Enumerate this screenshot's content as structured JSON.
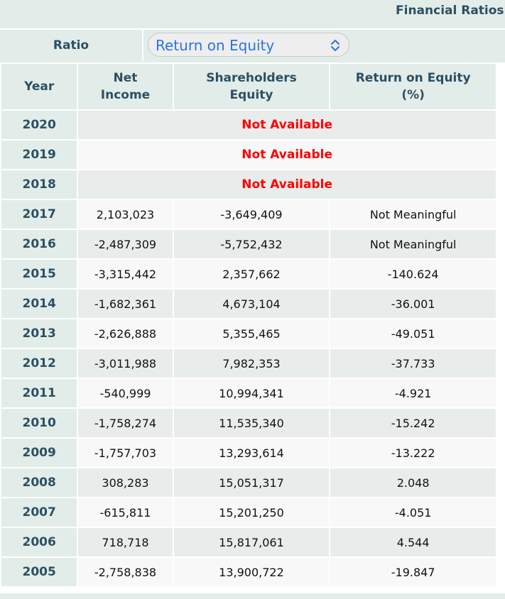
{
  "header": {
    "title": "Financial Ratios"
  },
  "ratio_selector": {
    "label": "Ratio",
    "selected": "Return on Equity",
    "chevron_icon": "chevron-updown-icon",
    "accent_color": "#2a74e0"
  },
  "table": {
    "columns": [
      "Year",
      "Net\nIncome",
      "Shareholders\nEquity",
      "Return on Equity\n(%)"
    ],
    "not_available_text": "Not Available",
    "na_rows": [
      {
        "year": "2020"
      },
      {
        "year": "2019"
      },
      {
        "year": "2018"
      }
    ],
    "rows": [
      {
        "year": "2017",
        "net_income": "2,103,023",
        "equity": "-3,649,409",
        "roe": "Not Meaningful"
      },
      {
        "year": "2016",
        "net_income": "-2,487,309",
        "equity": "-5,752,432",
        "roe": "Not Meaningful"
      },
      {
        "year": "2015",
        "net_income": "-3,315,442",
        "equity": "2,357,662",
        "roe": "-140.624"
      },
      {
        "year": "2014",
        "net_income": "-1,682,361",
        "equity": "4,673,104",
        "roe": "-36.001"
      },
      {
        "year": "2013",
        "net_income": "-2,626,888",
        "equity": "5,355,465",
        "roe": "-49.051"
      },
      {
        "year": "2012",
        "net_income": "-3,011,988",
        "equity": "7,982,353",
        "roe": "-37.733"
      },
      {
        "year": "2011",
        "net_income": "-540,999",
        "equity": "10,994,341",
        "roe": "-4.921"
      },
      {
        "year": "2010",
        "net_income": "-1,758,274",
        "equity": "11,535,340",
        "roe": "-15.242"
      },
      {
        "year": "2009",
        "net_income": "-1,757,703",
        "equity": "13,293,614",
        "roe": "-13.222"
      },
      {
        "year": "2008",
        "net_income": "308,283",
        "equity": "15,051,317",
        "roe": "2.048"
      },
      {
        "year": "2007",
        "net_income": "-615,811",
        "equity": "15,201,250",
        "roe": "-4.051"
      },
      {
        "year": "2006",
        "net_income": "718,718",
        "equity": "15,817,061",
        "roe": "4.544"
      },
      {
        "year": "2005",
        "net_income": "-2,758,838",
        "equity": "13,900,722",
        "roe": "-19.847"
      }
    ]
  }
}
